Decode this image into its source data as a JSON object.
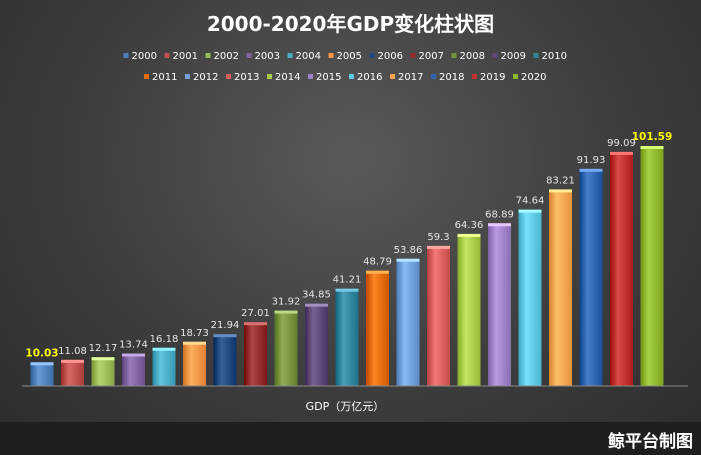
{
  "chart_data": {
    "type": "bar",
    "title": "2000-2020年GDP变化柱状图",
    "xlabel": "GDP（万亿元）",
    "ylabel": "",
    "ylim": [
      0,
      110
    ],
    "grid": false,
    "legend_position": "top",
    "categories": [
      "2000",
      "2001",
      "2002",
      "2003",
      "2004",
      "2005",
      "2006",
      "2007",
      "2008",
      "2009",
      "2010",
      "2011",
      "2012",
      "2013",
      "2014",
      "2015",
      "2016",
      "2017",
      "2018",
      "2019",
      "2020"
    ],
    "values": [
      10.03,
      11.08,
      12.17,
      13.74,
      16.18,
      18.73,
      21.94,
      27.01,
      31.92,
      34.85,
      41.21,
      48.79,
      53.86,
      59.3,
      64.36,
      68.89,
      74.64,
      83.21,
      91.93,
      99.09,
      101.59
    ],
    "data_labels": [
      "10.03",
      "11.08",
      "12.17",
      "13.74",
      "16.18",
      "18.73",
      "21.94",
      "27.01",
      "31.92",
      "34.85",
      "41.21",
      "48.79",
      "53.86",
      "59.3",
      "64.36",
      "68.89",
      "74.64",
      "83.21",
      "91.93",
      "99.09",
      "101.59"
    ],
    "highlighted_labels": [
      "2000",
      "2020"
    ],
    "colors": [
      "#4f81bd",
      "#c0504d",
      "#9bbb59",
      "#8064a2",
      "#4bacc6",
      "#f79646",
      "#1f497d",
      "#942b2b",
      "#77933c",
      "#5f497a",
      "#31859c",
      "#e36c09",
      "#6fa0dc",
      "#d9605c",
      "#a9cc4a",
      "#9f82c9",
      "#5ec8e5",
      "#f9a64e",
      "#2e64b0",
      "#c0302d",
      "#8fb82f"
    ],
    "label_color": "#e6e6e6",
    "highlight_label_color": "#ffff00"
  },
  "watermark": "鲸平台制图"
}
